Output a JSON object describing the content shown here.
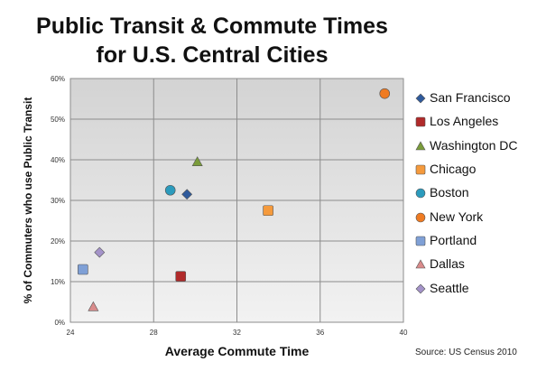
{
  "chart_data": {
    "type": "scatter",
    "title_line1": "Public Transit & Commute Times",
    "title_line2": "for U.S. Central Cities",
    "xlabel": "Average Commute Time",
    "ylabel": "% of Commuters who use Public Transit",
    "source": "Source: US Census 2010",
    "xlim": [
      24,
      40
    ],
    "ylim": [
      0,
      60
    ],
    "x_ticks": [
      "24",
      "28",
      "32",
      "36",
      "40"
    ],
    "y_ticks": [
      "0%",
      "10%",
      "20%",
      "30%",
      "40%",
      "50%",
      "60%"
    ],
    "grid": true,
    "legend_position": "right",
    "series": [
      {
        "name": "San Francisco",
        "x": 29.6,
        "y": 31.5,
        "marker": "diamond",
        "color": "#2e5a9c"
      },
      {
        "name": "Los Angeles",
        "x": 29.3,
        "y": 11.3,
        "marker": "square",
        "color": "#b02a2a"
      },
      {
        "name": "Washington DC",
        "x": 30.1,
        "y": 39.5,
        "marker": "triangle",
        "color": "#7a9c3a"
      },
      {
        "name": "Chicago",
        "x": 33.5,
        "y": 27.5,
        "marker": "square",
        "color": "#f59a3c"
      },
      {
        "name": "Boston",
        "x": 28.8,
        "y": 32.5,
        "marker": "circle",
        "color": "#2b9bbd"
      },
      {
        "name": "New York",
        "x": 39.1,
        "y": 56.3,
        "marker": "circle",
        "color": "#ef7b22"
      },
      {
        "name": "Portland",
        "x": 24.6,
        "y": 13.0,
        "marker": "square",
        "color": "#7fa0d6"
      },
      {
        "name": "Dallas",
        "x": 25.1,
        "y": 3.8,
        "marker": "triangle",
        "color": "#d98b8b"
      },
      {
        "name": "Seattle",
        "x": 25.4,
        "y": 17.2,
        "marker": "diamond",
        "color": "#a493c9"
      }
    ]
  }
}
